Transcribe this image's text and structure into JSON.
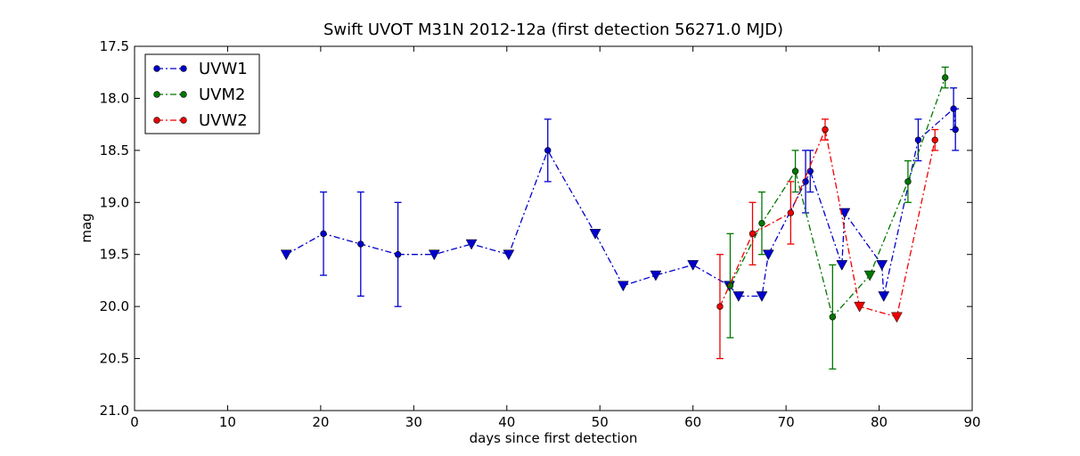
{
  "chart_data": {
    "type": "scatter",
    "title": "Swift UVOT M31N 2012-12a (first detection 56271.0 MJD)",
    "xlabel": "days since first detection",
    "ylabel": "mag",
    "xlim": [
      0,
      90
    ],
    "ylim": [
      17.5,
      21.0
    ],
    "y_inverted": true,
    "x_ticks": [
      0,
      10,
      20,
      30,
      40,
      50,
      60,
      70,
      80,
      90
    ],
    "x_tick_labels": [
      "0",
      "10",
      "20",
      "30",
      "40",
      "50",
      "60",
      "70",
      "80",
      "90"
    ],
    "y_ticks": [
      17.5,
      18.0,
      18.5,
      19.0,
      19.5,
      20.0,
      20.5,
      21.0
    ],
    "y_tick_labels": [
      "17.5",
      "18.0",
      "18.5",
      "19.0",
      "19.5",
      "20.0",
      "20.5",
      "21.0"
    ],
    "grid": false,
    "legend_position": "top-left",
    "line_style": "dash-dot",
    "marker_note": "circles = detections with error bars, downward triangles = upper limits",
    "series": [
      {
        "name": "UVW1",
        "color": "#0000cc",
        "points": [
          {
            "x": 16.3,
            "y": 19.5,
            "type": "limit"
          },
          {
            "x": 20.3,
            "y": 19.3,
            "err": 0.4,
            "type": "detection"
          },
          {
            "x": 24.3,
            "y": 19.4,
            "err": 0.5,
            "type": "detection"
          },
          {
            "x": 28.3,
            "y": 19.5,
            "err": 0.5,
            "type": "detection"
          },
          {
            "x": 32.2,
            "y": 19.5,
            "type": "limit"
          },
          {
            "x": 36.2,
            "y": 19.4,
            "type": "limit"
          },
          {
            "x": 40.2,
            "y": 19.5,
            "type": "limit"
          },
          {
            "x": 44.4,
            "y": 18.5,
            "err": 0.3,
            "type": "detection"
          },
          {
            "x": 49.5,
            "y": 19.3,
            "type": "limit"
          },
          {
            "x": 52.5,
            "y": 19.8,
            "type": "limit"
          },
          {
            "x": 56.0,
            "y": 19.7,
            "type": "limit"
          },
          {
            "x": 60.0,
            "y": 19.6,
            "type": "limit"
          },
          {
            "x": 63.9,
            "y": 19.8,
            "type": "limit"
          },
          {
            "x": 64.9,
            "y": 19.9,
            "type": "limit"
          },
          {
            "x": 67.4,
            "y": 19.9,
            "type": "limit"
          },
          {
            "x": 68.1,
            "y": 19.5,
            "type": "limit"
          },
          {
            "x": 72.1,
            "y": 18.8,
            "err": 0.3,
            "type": "detection"
          },
          {
            "x": 72.6,
            "y": 18.7,
            "err": 0.2,
            "type": "detection"
          },
          {
            "x": 76.0,
            "y": 19.6,
            "type": "limit"
          },
          {
            "x": 76.3,
            "y": 19.1,
            "type": "limit"
          },
          {
            "x": 80.3,
            "y": 19.6,
            "type": "limit"
          },
          {
            "x": 80.5,
            "y": 19.9,
            "type": "limit"
          },
          {
            "x": 84.2,
            "y": 18.4,
            "err": 0.2,
            "type": "detection"
          },
          {
            "x": 88.0,
            "y": 18.1,
            "err": 0.2,
            "type": "detection"
          },
          {
            "x": 88.2,
            "y": 18.3,
            "err": 0.2,
            "type": "detection"
          }
        ]
      },
      {
        "name": "UVM2",
        "color": "#007700",
        "points": [
          {
            "x": 64.0,
            "y": 19.8,
            "err": 0.5,
            "type": "detection"
          },
          {
            "x": 67.4,
            "y": 19.2,
            "err": 0.3,
            "type": "detection"
          },
          {
            "x": 71.0,
            "y": 18.7,
            "err": 0.2,
            "type": "detection"
          },
          {
            "x": 75.0,
            "y": 20.1,
            "err": 0.5,
            "type": "detection"
          },
          {
            "x": 79.0,
            "y": 19.7,
            "type": "limit"
          },
          {
            "x": 83.1,
            "y": 18.8,
            "err": 0.2,
            "type": "detection"
          },
          {
            "x": 87.1,
            "y": 17.8,
            "err": 0.1,
            "type": "detection"
          }
        ]
      },
      {
        "name": "UVW2",
        "color": "#ee0000",
        "points": [
          {
            "x": 62.9,
            "y": 20.0,
            "err": 0.5,
            "type": "detection"
          },
          {
            "x": 66.4,
            "y": 19.3,
            "err": 0.3,
            "type": "detection"
          },
          {
            "x": 70.5,
            "y": 19.1,
            "err": 0.3,
            "type": "detection"
          },
          {
            "x": 74.2,
            "y": 18.3,
            "err": 0.1,
            "type": "detection"
          },
          {
            "x": 77.9,
            "y": 20.0,
            "type": "limit"
          },
          {
            "x": 81.9,
            "y": 20.1,
            "type": "limit"
          },
          {
            "x": 86.0,
            "y": 18.4,
            "err": 0.1,
            "type": "detection"
          }
        ]
      }
    ]
  }
}
